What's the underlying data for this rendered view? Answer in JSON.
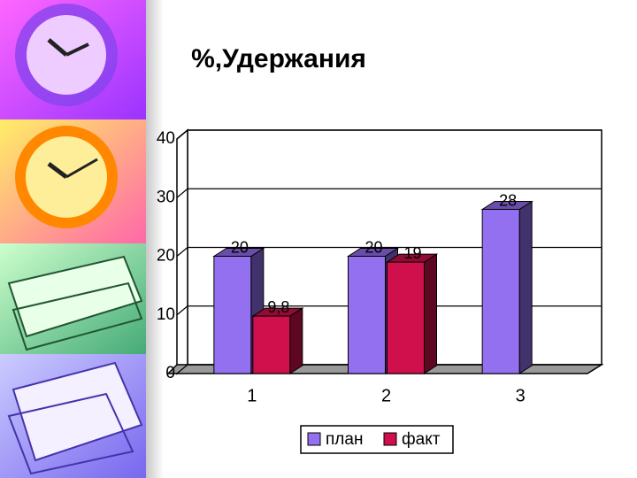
{
  "chart_data": {
    "type": "bar",
    "title": "%,Удержания",
    "categories": [
      "1",
      "2",
      "3"
    ],
    "series": [
      {
        "name": "план",
        "color": "#9370f0",
        "values": [
          20,
          20,
          28
        ]
      },
      {
        "name": "факт",
        "color": "#d0104c",
        "values": [
          9.8,
          19,
          null
        ],
        "value_labels": [
          "9,8",
          "19",
          null
        ]
      }
    ],
    "ylim": [
      0,
      40
    ],
    "yticks": [
      0,
      10,
      20,
      30,
      40
    ],
    "grid": true,
    "legend": "bottom"
  }
}
